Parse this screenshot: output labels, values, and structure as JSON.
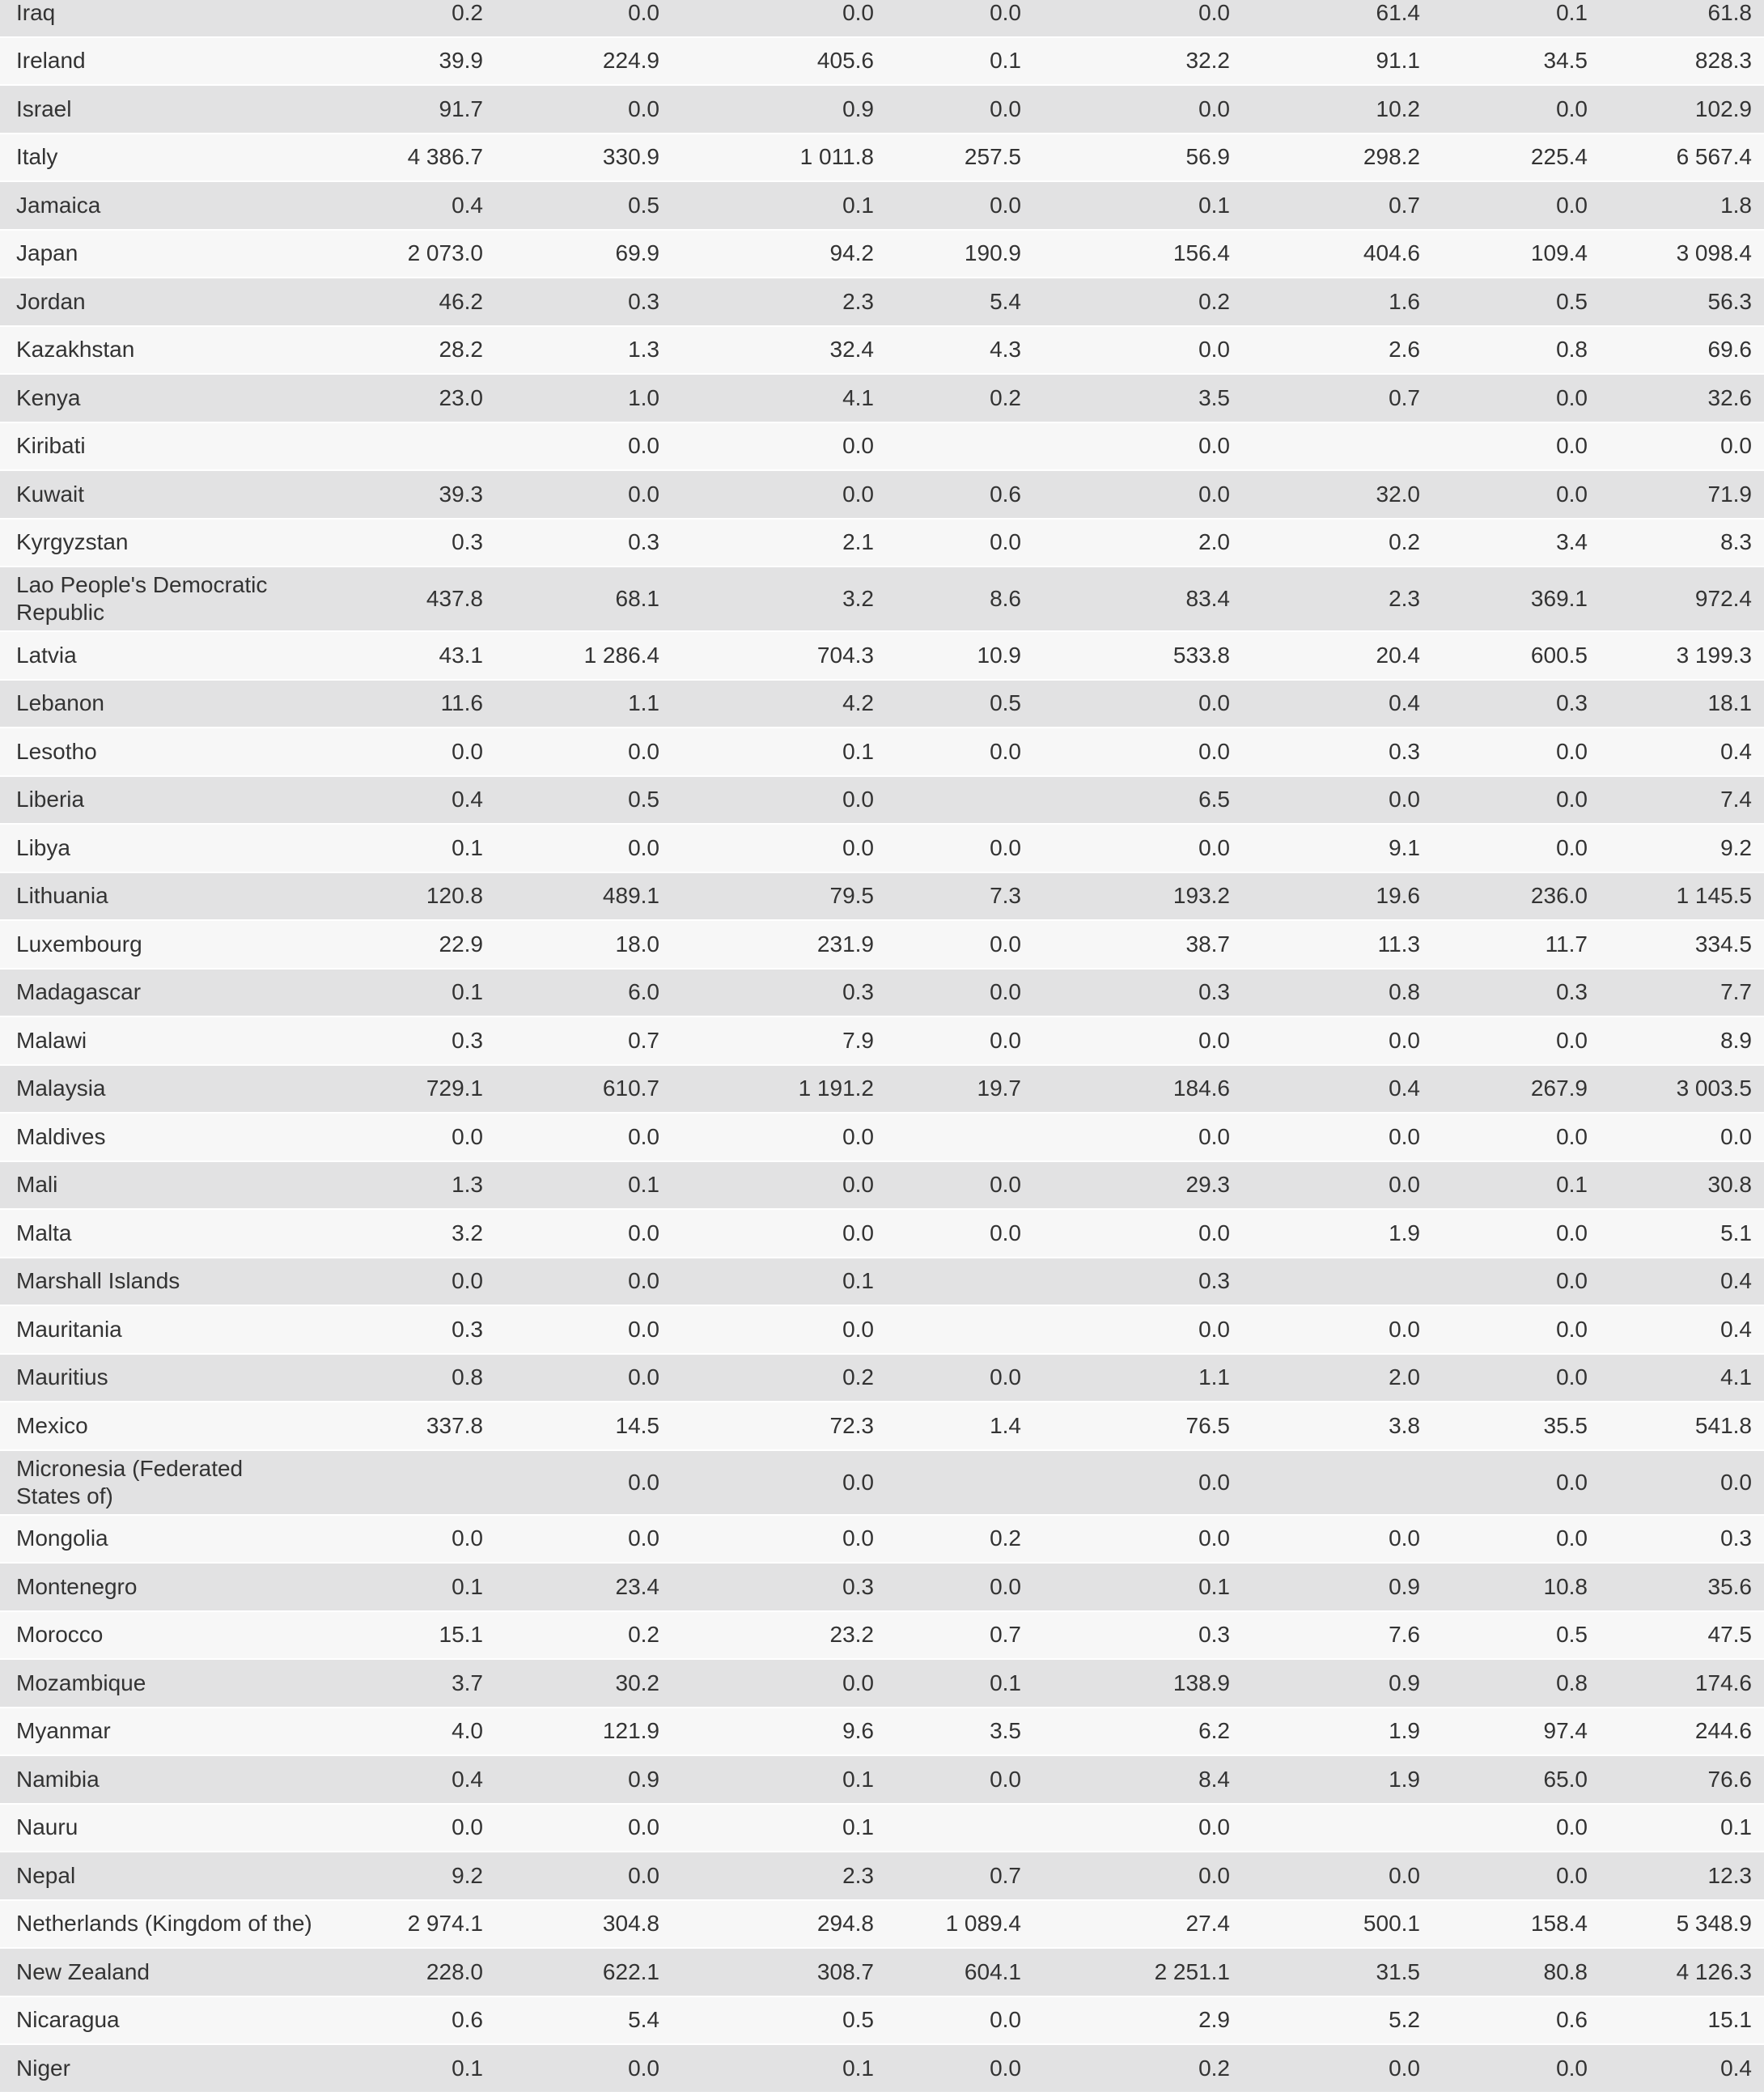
{
  "style": {
    "row_shade_gray": "#e2e2e3",
    "row_shade_light": "#f7f7f7",
    "separator_color": "#ffffff",
    "text_color": "#333333"
  },
  "table": {
    "rows": [
      {
        "name": "Iraq",
        "values": [
          "0.2",
          "0.0",
          "0.0",
          "0.0",
          "0.0",
          "61.4",
          "0.1",
          "61.8"
        ]
      },
      {
        "name": "Ireland",
        "values": [
          "39.9",
          "224.9",
          "405.6",
          "0.1",
          "32.2",
          "91.1",
          "34.5",
          "828.3"
        ]
      },
      {
        "name": "Israel",
        "values": [
          "91.7",
          "0.0",
          "0.9",
          "0.0",
          "0.0",
          "10.2",
          "0.0",
          "102.9"
        ]
      },
      {
        "name": "Italy",
        "values": [
          "4 386.7",
          "330.9",
          "1 011.8",
          "257.5",
          "56.9",
          "298.2",
          "225.4",
          "6 567.4"
        ]
      },
      {
        "name": "Jamaica",
        "values": [
          "0.4",
          "0.5",
          "0.1",
          "0.0",
          "0.1",
          "0.7",
          "0.0",
          "1.8"
        ]
      },
      {
        "name": "Japan",
        "values": [
          "2 073.0",
          "69.9",
          "94.2",
          "190.9",
          "156.4",
          "404.6",
          "109.4",
          "3 098.4"
        ]
      },
      {
        "name": "Jordan",
        "values": [
          "46.2",
          "0.3",
          "2.3",
          "5.4",
          "0.2",
          "1.6",
          "0.5",
          "56.3"
        ]
      },
      {
        "name": "Kazakhstan",
        "values": [
          "28.2",
          "1.3",
          "32.4",
          "4.3",
          "0.0",
          "2.6",
          "0.8",
          "69.6"
        ]
      },
      {
        "name": "Kenya",
        "values": [
          "23.0",
          "1.0",
          "4.1",
          "0.2",
          "3.5",
          "0.7",
          "0.0",
          "32.6"
        ]
      },
      {
        "name": "Kiribati",
        "values": [
          "",
          "0.0",
          "0.0",
          "",
          "0.0",
          "",
          "0.0",
          "0.0"
        ]
      },
      {
        "name": "Kuwait",
        "values": [
          "39.3",
          "0.0",
          "0.0",
          "0.6",
          "0.0",
          "32.0",
          "0.0",
          "71.9"
        ]
      },
      {
        "name": "Kyrgyzstan",
        "values": [
          "0.3",
          "0.3",
          "2.1",
          "0.0",
          "2.0",
          "0.2",
          "3.4",
          "8.3"
        ]
      },
      {
        "name": "Lao People's Democratic\nRepublic",
        "values": [
          "437.8",
          "68.1",
          "3.2",
          "8.6",
          "83.4",
          "2.3",
          "369.1",
          "972.4"
        ]
      },
      {
        "name": "Latvia",
        "values": [
          "43.1",
          "1 286.4",
          "704.3",
          "10.9",
          "533.8",
          "20.4",
          "600.5",
          "3 199.3"
        ]
      },
      {
        "name": "Lebanon",
        "values": [
          "11.6",
          "1.1",
          "4.2",
          "0.5",
          "0.0",
          "0.4",
          "0.3",
          "18.1"
        ]
      },
      {
        "name": "Lesotho",
        "values": [
          "0.0",
          "0.0",
          "0.1",
          "0.0",
          "0.0",
          "0.3",
          "0.0",
          "0.4"
        ]
      },
      {
        "name": "Liberia",
        "values": [
          "0.4",
          "0.5",
          "0.0",
          "",
          "6.5",
          "0.0",
          "0.0",
          "7.4"
        ]
      },
      {
        "name": "Libya",
        "values": [
          "0.1",
          "0.0",
          "0.0",
          "0.0",
          "0.0",
          "9.1",
          "0.0",
          "9.2"
        ]
      },
      {
        "name": "Lithuania",
        "values": [
          "120.8",
          "489.1",
          "79.5",
          "7.3",
          "193.2",
          "19.6",
          "236.0",
          "1 145.5"
        ]
      },
      {
        "name": "Luxembourg",
        "values": [
          "22.9",
          "18.0",
          "231.9",
          "0.0",
          "38.7",
          "11.3",
          "11.7",
          "334.5"
        ]
      },
      {
        "name": "Madagascar",
        "values": [
          "0.1",
          "6.0",
          "0.3",
          "0.0",
          "0.3",
          "0.8",
          "0.3",
          "7.7"
        ]
      },
      {
        "name": "Malawi",
        "values": [
          "0.3",
          "0.7",
          "7.9",
          "0.0",
          "0.0",
          "0.0",
          "0.0",
          "8.9"
        ]
      },
      {
        "name": "Malaysia",
        "values": [
          "729.1",
          "610.7",
          "1 191.2",
          "19.7",
          "184.6",
          "0.4",
          "267.9",
          "3 003.5"
        ]
      },
      {
        "name": "Maldives",
        "values": [
          "0.0",
          "0.0",
          "0.0",
          "",
          "0.0",
          "0.0",
          "0.0",
          "0.0"
        ]
      },
      {
        "name": "Mali",
        "values": [
          "1.3",
          "0.1",
          "0.0",
          "0.0",
          "29.3",
          "0.0",
          "0.1",
          "30.8"
        ]
      },
      {
        "name": "Malta",
        "values": [
          "3.2",
          "0.0",
          "0.0",
          "0.0",
          "0.0",
          "1.9",
          "0.0",
          "5.1"
        ]
      },
      {
        "name": "Marshall Islands",
        "values": [
          "0.0",
          "0.0",
          "0.1",
          "",
          "0.3",
          "",
          "0.0",
          "0.4"
        ]
      },
      {
        "name": "Mauritania",
        "values": [
          "0.3",
          "0.0",
          "0.0",
          "",
          "0.0",
          "0.0",
          "0.0",
          "0.4"
        ]
      },
      {
        "name": "Mauritius",
        "values": [
          "0.8",
          "0.0",
          "0.2",
          "0.0",
          "1.1",
          "2.0",
          "0.0",
          "4.1"
        ]
      },
      {
        "name": "Mexico",
        "values": [
          "337.8",
          "14.5",
          "72.3",
          "1.4",
          "76.5",
          "3.8",
          "35.5",
          "541.8"
        ]
      },
      {
        "name": "Micronesia (Federated\nStates of)",
        "values": [
          "",
          "0.0",
          "0.0",
          "",
          "0.0",
          "",
          "0.0",
          "0.0"
        ]
      },
      {
        "name": "Mongolia",
        "values": [
          "0.0",
          "0.0",
          "0.0",
          "0.2",
          "0.0",
          "0.0",
          "0.0",
          "0.3"
        ]
      },
      {
        "name": "Montenegro",
        "values": [
          "0.1",
          "23.4",
          "0.3",
          "0.0",
          "0.1",
          "0.9",
          "10.8",
          "35.6"
        ]
      },
      {
        "name": "Morocco",
        "values": [
          "15.1",
          "0.2",
          "23.2",
          "0.7",
          "0.3",
          "7.6",
          "0.5",
          "47.5"
        ]
      },
      {
        "name": "Mozambique",
        "values": [
          "3.7",
          "30.2",
          "0.0",
          "0.1",
          "138.9",
          "0.9",
          "0.8",
          "174.6"
        ]
      },
      {
        "name": "Myanmar",
        "values": [
          "4.0",
          "121.9",
          "9.6",
          "3.5",
          "6.2",
          "1.9",
          "97.4",
          "244.6"
        ]
      },
      {
        "name": "Namibia",
        "values": [
          "0.4",
          "0.9",
          "0.1",
          "0.0",
          "8.4",
          "1.9",
          "65.0",
          "76.6"
        ]
      },
      {
        "name": "Nauru",
        "values": [
          "0.0",
          "0.0",
          "0.1",
          "",
          "0.0",
          "",
          "0.0",
          "0.1"
        ]
      },
      {
        "name": "Nepal",
        "values": [
          "9.2",
          "0.0",
          "2.3",
          "0.7",
          "0.0",
          "0.0",
          "0.0",
          "12.3"
        ]
      },
      {
        "name": "Netherlands (Kingdom of the)",
        "values": [
          "2 974.1",
          "304.8",
          "294.8",
          "1 089.4",
          "27.4",
          "500.1",
          "158.4",
          "5 348.9"
        ]
      },
      {
        "name": "New Zealand",
        "values": [
          "228.0",
          "622.1",
          "308.7",
          "604.1",
          "2 251.1",
          "31.5",
          "80.8",
          "4 126.3"
        ]
      },
      {
        "name": "Nicaragua",
        "values": [
          "0.6",
          "5.4",
          "0.5",
          "0.0",
          "2.9",
          "5.2",
          "0.6",
          "15.1"
        ]
      },
      {
        "name": "Niger",
        "values": [
          "0.1",
          "0.0",
          "0.1",
          "0.0",
          "0.2",
          "0.0",
          "0.0",
          "0.4"
        ]
      }
    ]
  }
}
